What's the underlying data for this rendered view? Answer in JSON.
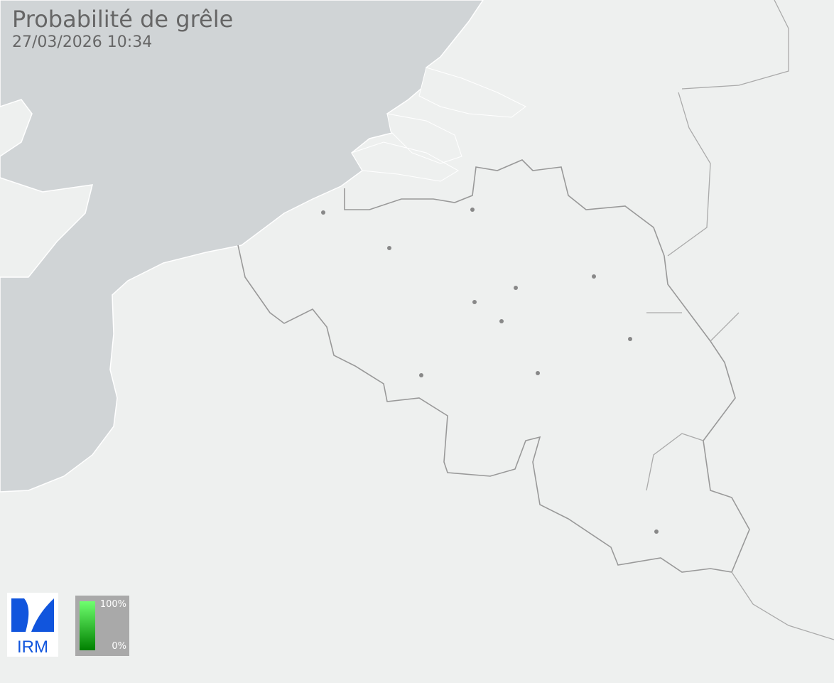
{
  "header": {
    "title": "Probabilité de grêle",
    "timestamp": "27/03/2026 10:34"
  },
  "legend": {
    "max_label": "100%",
    "min_label": "0%",
    "color_max": "#6fff6f",
    "color_min": "#008000"
  },
  "logo": {
    "text": "IRM",
    "color": "#1155dd"
  },
  "colors": {
    "sea": "#d0d4d6",
    "land": "#eef0ef",
    "border": "#999999"
  }
}
